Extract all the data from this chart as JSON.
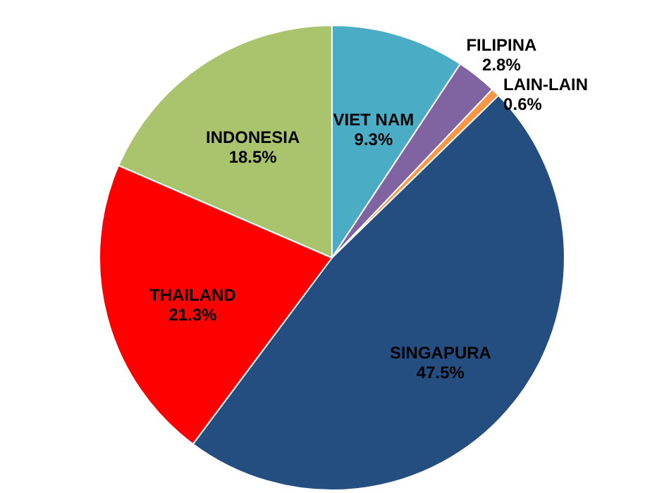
{
  "chart_data": {
    "type": "pie",
    "categories": [
      "VIET NAM",
      "FILIPINA",
      "LAIN-LAIN",
      "SINGAPURA",
      "THAILAND",
      "INDONESIA"
    ],
    "values": [
      9.3,
      2.8,
      0.6,
      47.5,
      21.3,
      18.5
    ],
    "value_labels": [
      "9.3%",
      "2.8%",
      "0.6%",
      "47.5%",
      "21.3%",
      "18.5%"
    ],
    "colors": [
      "#4bacc6",
      "#8064a2",
      "#f79646",
      "#254e80",
      "#ff0000",
      "#a9c46c"
    ],
    "legend": false
  }
}
